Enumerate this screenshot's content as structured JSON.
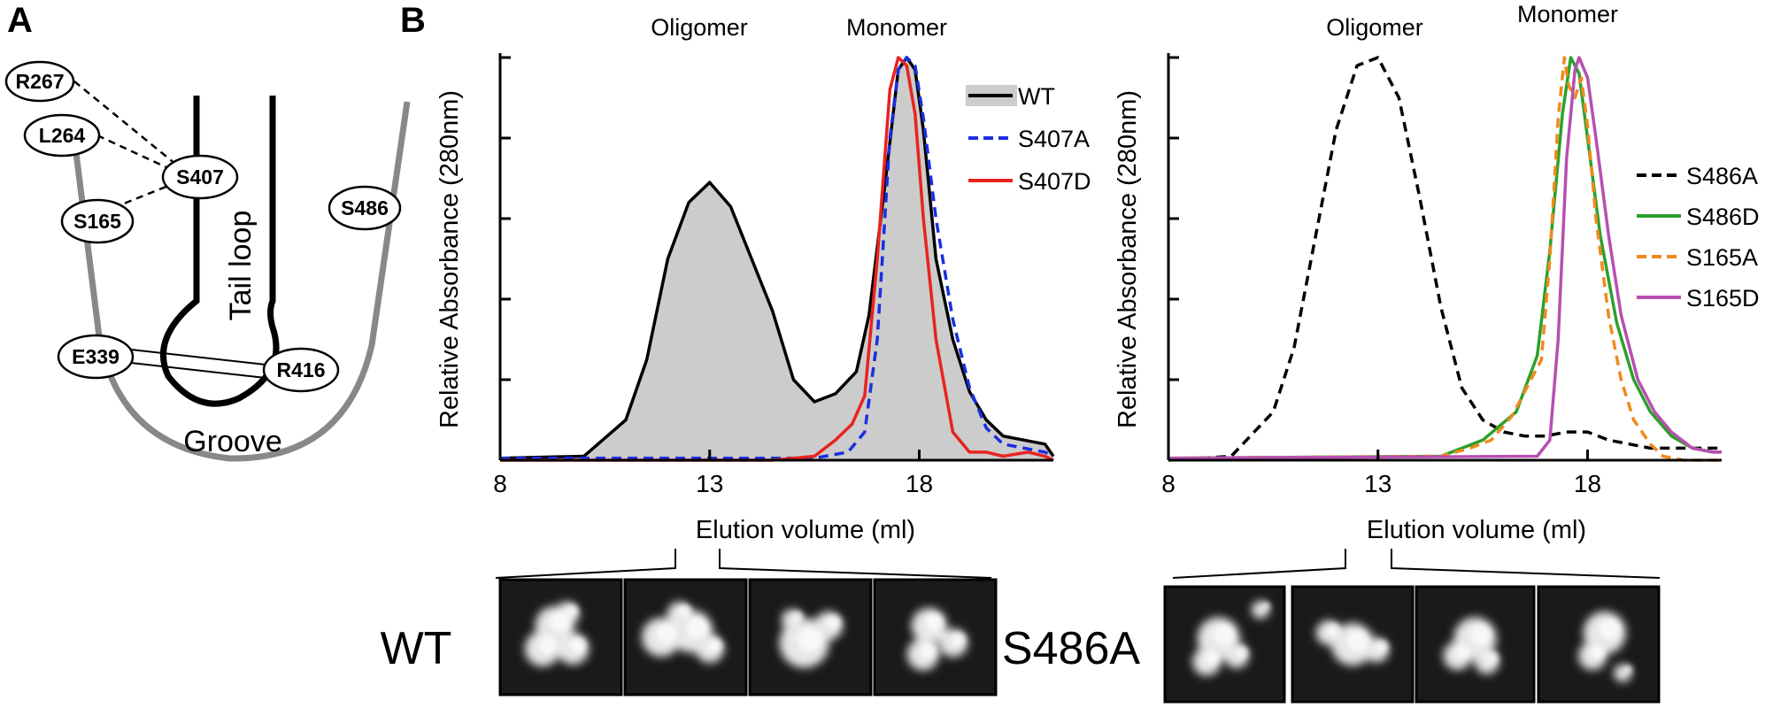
{
  "figure": {
    "panel_a": {
      "letter": "A",
      "residues": [
        "R267",
        "L264",
        "S407",
        "S165",
        "S486",
        "E339",
        "R416"
      ],
      "labels": {
        "tail_loop": "Tail loop",
        "groove": "Groove"
      }
    },
    "panel_b": {
      "letter": "B",
      "micrograph_labels": [
        "WT",
        "S486A"
      ]
    }
  },
  "chart_data": [
    {
      "type": "line",
      "xlabel": "Elution volume (ml)",
      "ylabel": "Relative Absorbance (280nm)",
      "xlim": [
        8,
        21.2
      ],
      "ylim": [
        0,
        1
      ],
      "xticks": [
        8,
        13,
        18
      ],
      "grid": false,
      "legend_position": "top-right",
      "annotations": [
        "Oligomer",
        "Monomer"
      ],
      "series": [
        {
          "name": "WT",
          "color": "#000000",
          "style": "solid",
          "fill": "#cccccc",
          "x": [
            8,
            10,
            11,
            11.5,
            12,
            12.5,
            13,
            13.5,
            14,
            14.5,
            15,
            15.5,
            16,
            16.5,
            16.8,
            17.2,
            17.5,
            17.7,
            17.9,
            18.1,
            18.4,
            18.8,
            19.2,
            19.6,
            20,
            20.5,
            21,
            21.2
          ],
          "y": [
            0.005,
            0.01,
            0.1,
            0.25,
            0.5,
            0.64,
            0.69,
            0.63,
            0.5,
            0.37,
            0.2,
            0.145,
            0.165,
            0.22,
            0.36,
            0.7,
            0.97,
            1.0,
            0.97,
            0.82,
            0.5,
            0.3,
            0.17,
            0.1,
            0.06,
            0.05,
            0.04,
            0.01
          ]
        },
        {
          "name": "S407A",
          "color": "#1a2fe0",
          "style": "dashed",
          "x": [
            8,
            15.5,
            16.3,
            16.7,
            17.0,
            17.3,
            17.5,
            17.7,
            17.9,
            18.1,
            18.4,
            18.8,
            19.2,
            19.6,
            20,
            20.5,
            21,
            21.2
          ],
          "y": [
            0.005,
            0.005,
            0.02,
            0.07,
            0.3,
            0.8,
            0.97,
            1.0,
            0.98,
            0.85,
            0.6,
            0.35,
            0.18,
            0.08,
            0.04,
            0.03,
            0.02,
            0.01
          ]
        },
        {
          "name": "S407D",
          "color": "#e8231f",
          "style": "solid",
          "x": [
            8,
            14.5,
            15.5,
            16,
            16.4,
            16.7,
            17.0,
            17.3,
            17.5,
            17.7,
            17.9,
            18.1,
            18.4,
            18.8,
            19.2,
            19.6,
            20,
            20.6,
            21,
            21.2
          ],
          "y": [
            0.0,
            0.0,
            0.01,
            0.05,
            0.09,
            0.16,
            0.5,
            0.92,
            1.0,
            0.98,
            0.86,
            0.6,
            0.3,
            0.07,
            0.02,
            0.02,
            0.01,
            0.02,
            0.01,
            0.0
          ]
        }
      ]
    },
    {
      "type": "line",
      "xlabel": "Elution volume (ml)",
      "ylabel": "Relative Absorbance (280nm)",
      "xlim": [
        8,
        21.2
      ],
      "ylim": [
        0,
        1
      ],
      "xticks": [
        8,
        13,
        18
      ],
      "grid": false,
      "legend_position": "right",
      "annotations": [
        "Oligomer",
        "Monomer"
      ],
      "series": [
        {
          "name": "S486A",
          "color": "#000000",
          "style": "dashed",
          "x": [
            8,
            9.5,
            10.5,
            11,
            11.5,
            12,
            12.5,
            13,
            13.5,
            14,
            14.5,
            15,
            15.5,
            16,
            16.5,
            17,
            17.5,
            18,
            18.5,
            19,
            19.5,
            20,
            20.5,
            21,
            21.2
          ],
          "y": [
            0.0,
            0.01,
            0.12,
            0.28,
            0.55,
            0.82,
            0.98,
            1.0,
            0.9,
            0.65,
            0.38,
            0.18,
            0.1,
            0.07,
            0.06,
            0.06,
            0.07,
            0.07,
            0.05,
            0.04,
            0.03,
            0.03,
            0.03,
            0.03,
            0.03
          ]
        },
        {
          "name": "S486D",
          "color": "#2ca02c",
          "style": "solid",
          "x": [
            8,
            14.5,
            15.5,
            16.3,
            16.8,
            17.1,
            17.4,
            17.6,
            17.8,
            18.0,
            18.3,
            18.7,
            19.1,
            19.5,
            20,
            20.5,
            21,
            21.2
          ],
          "y": [
            0.005,
            0.01,
            0.05,
            0.12,
            0.26,
            0.52,
            0.86,
            1.0,
            0.96,
            0.8,
            0.56,
            0.34,
            0.2,
            0.12,
            0.06,
            0.03,
            0.02,
            0.02
          ]
        },
        {
          "name": "S165A",
          "color": "#f08a1c",
          "style": "dashed",
          "x": [
            8,
            14.5,
            15.2,
            15.7,
            16.2,
            16.5,
            16.9,
            17.1,
            17.3,
            17.45,
            17.55,
            17.7,
            17.85,
            18.0,
            18.2,
            18.5,
            18.8,
            19.1,
            19.5,
            19.8,
            20.3,
            21,
            21.2
          ],
          "y": [
            0.005,
            0.01,
            0.03,
            0.05,
            0.11,
            0.17,
            0.25,
            0.5,
            0.85,
            1.0,
            0.93,
            0.9,
            0.95,
            0.83,
            0.6,
            0.36,
            0.2,
            0.1,
            0.04,
            0.01,
            0.0,
            0.0,
            0.0
          ]
        },
        {
          "name": "S165D",
          "color": "#b84fb0",
          "style": "solid",
          "x": [
            8,
            16.8,
            17.1,
            17.3,
            17.5,
            17.7,
            17.8,
            18.0,
            18.2,
            18.5,
            18.8,
            19.2,
            19.6,
            20,
            20.5,
            21,
            21.2
          ],
          "y": [
            0.005,
            0.01,
            0.05,
            0.3,
            0.75,
            0.97,
            1.0,
            0.95,
            0.8,
            0.56,
            0.36,
            0.2,
            0.12,
            0.07,
            0.03,
            0.02,
            0.02
          ]
        }
      ]
    }
  ]
}
